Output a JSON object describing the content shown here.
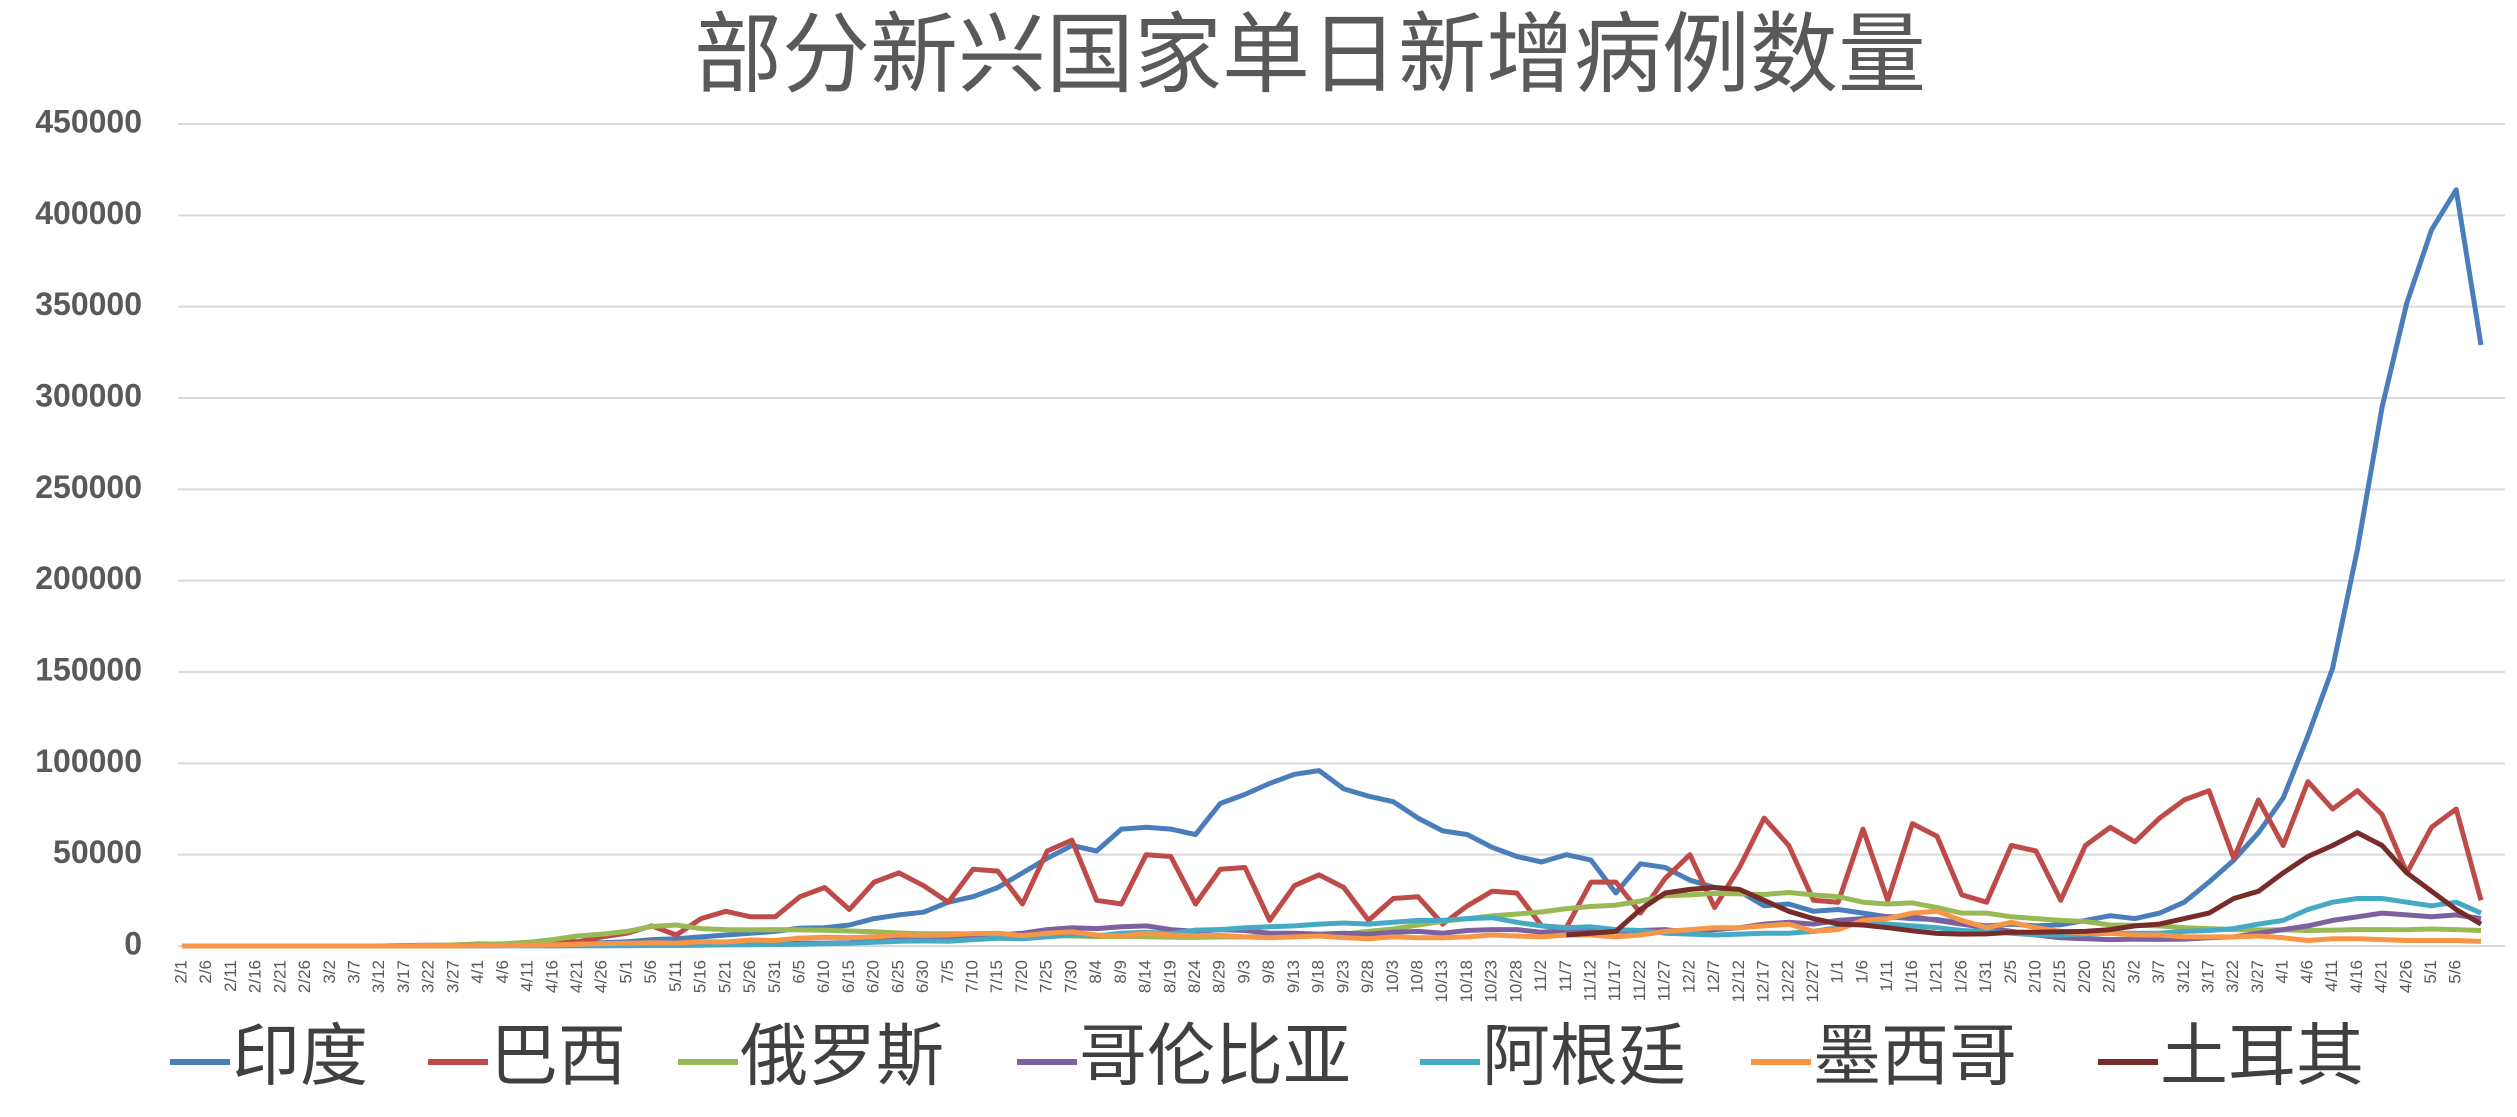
{
  "chart_data": {
    "type": "line",
    "title": "部分新兴国家单日新增病例数量",
    "categories": [
      "2/1",
      "2/6",
      "2/11",
      "2/16",
      "2/21",
      "2/26",
      "3/2",
      "3/7",
      "3/12",
      "3/17",
      "3/22",
      "3/27",
      "4/1",
      "4/6",
      "4/11",
      "4/16",
      "4/21",
      "4/26",
      "5/1",
      "5/6",
      "5/11",
      "5/16",
      "5/21",
      "5/26",
      "5/31",
      "6/5",
      "6/10",
      "6/15",
      "6/20",
      "6/25",
      "6/30",
      "7/5",
      "7/10",
      "7/15",
      "7/20",
      "7/25",
      "7/30",
      "8/4",
      "8/9",
      "8/14",
      "8/19",
      "8/24",
      "8/29",
      "9/3",
      "9/8",
      "9/13",
      "9/18",
      "9/23",
      "9/28",
      "10/3",
      "10/8",
      "10/13",
      "10/18",
      "10/23",
      "10/28",
      "11/2",
      "11/7",
      "11/12",
      "11/17",
      "11/22",
      "11/27",
      "12/2",
      "12/7",
      "12/12",
      "12/17",
      "12/22",
      "12/27",
      "1/1",
      "1/6",
      "1/11",
      "1/16",
      "1/21",
      "1/26",
      "1/31",
      "2/5",
      "2/10",
      "2/15",
      "2/20",
      "2/25",
      "3/2",
      "3/7",
      "3/12",
      "3/17",
      "3/22",
      "3/27",
      "4/1",
      "4/6",
      "4/11",
      "4/16",
      "4/21",
      "4/26",
      "5/1",
      "5/6",
      null
    ],
    "ylim": [
      0,
      450000
    ],
    "yticks": [
      0,
      50000,
      100000,
      150000,
      200000,
      250000,
      300000,
      350000,
      400000,
      450000
    ],
    "grid": true,
    "series": [
      {
        "name": "印度",
        "color": "#4a7ebb",
        "values": [
          0,
          0,
          0,
          0,
          0,
          0,
          0,
          0,
          0,
          0,
          100,
          200,
          500,
          700,
          900,
          1000,
          1500,
          1800,
          2300,
          3500,
          4000,
          5000,
          6000,
          7000,
          8000,
          9800,
          10000,
          11500,
          15000,
          17000,
          18500,
          24000,
          27000,
          32000,
          40000,
          48000,
          55000,
          52000,
          64000,
          65000,
          64000,
          61000,
          78000,
          83000,
          89000,
          94000,
          96000,
          86000,
          82000,
          79000,
          70000,
          63000,
          61000,
          54000,
          49000,
          46000,
          50000,
          47000,
          29000,
          45000,
          43000,
          36000,
          32000,
          30000,
          22000,
          23000,
          19000,
          20000,
          18000,
          16000,
          15000,
          14500,
          12500,
          11000,
          12000,
          11000,
          11600,
          14000,
          16600,
          15000,
          18000,
          24000,
          35000,
          47000,
          62000,
          81000,
          115000,
          152000,
          217000,
          295000,
          352000,
          392000,
          414000,
          329000
        ]
      },
      {
        "name": "巴西",
        "color": "#be4b48",
        "values": [
          0,
          0,
          0,
          0,
          0,
          0,
          0,
          0,
          0,
          300,
          400,
          500,
          1100,
          900,
          1300,
          3000,
          2300,
          5000,
          7000,
          11000,
          6000,
          15000,
          19000,
          16000,
          16000,
          27000,
          32000,
          20000,
          35000,
          40000,
          33000,
          24000,
          42000,
          41000,
          23000,
          52000,
          58000,
          25000,
          23000,
          50000,
          49000,
          23000,
          42000,
          43000,
          14000,
          33000,
          39000,
          32000,
          14000,
          26000,
          27000,
          12000,
          22000,
          30000,
          29000,
          11000,
          10000,
          35000,
          35000,
          18000,
          37000,
          50000,
          21000,
          43000,
          70000,
          55000,
          25000,
          24000,
          64000,
          25000,
          67000,
          60000,
          28000,
          24000,
          55000,
          52000,
          25000,
          55000,
          65000,
          57000,
          70000,
          80000,
          85000,
          48000,
          80000,
          55000,
          90000,
          75000,
          85000,
          72000,
          40000,
          65000,
          75000,
          25000
        ]
      },
      {
        "name": "俄罗斯",
        "color": "#98b954",
        "values": [
          0,
          0,
          0,
          0,
          0,
          0,
          0,
          0,
          0,
          100,
          300,
          600,
          800,
          1200,
          2000,
          3500,
          5500,
          6500,
          8000,
          10700,
          11500,
          9500,
          9000,
          8800,
          9000,
          8800,
          8600,
          8200,
          7800,
          7100,
          6700,
          6700,
          6600,
          6400,
          5900,
          5800,
          5500,
          5200,
          5200,
          5100,
          4800,
          4700,
          4900,
          5000,
          5200,
          5500,
          6000,
          6500,
          8000,
          9400,
          11500,
          13500,
          15000,
          16500,
          17500,
          18600,
          20500,
          21600,
          22400,
          24600,
          27500,
          28000,
          28800,
          28500,
          28200,
          29300,
          28000,
          27000,
          24000,
          23000,
          23600,
          21000,
          18000,
          18000,
          16000,
          15000,
          14000,
          13400,
          11500,
          11400,
          11000,
          10000,
          9500,
          9000,
          8800,
          8800,
          8500,
          8700,
          9000,
          9000,
          8900,
          9300,
          9000,
          8500
        ]
      },
      {
        "name": "哥伦比亚",
        "color": "#7d60a0",
        "values": [
          0,
          0,
          0,
          0,
          0,
          0,
          0,
          0,
          0,
          0,
          0,
          0,
          100,
          150,
          200,
          150,
          200,
          300,
          400,
          500,
          500,
          600,
          800,
          1000,
          1300,
          1500,
          1600,
          1800,
          3300,
          3300,
          3600,
          4000,
          4800,
          6000,
          7000,
          9000,
          10000,
          9500,
          10500,
          11000,
          9000,
          8000,
          9000,
          8500,
          7000,
          7000,
          6500,
          7000,
          6500,
          7500,
          8000,
          7000,
          8500,
          9000,
          9000,
          7500,
          8500,
          8000,
          8000,
          8500,
          9000,
          7500,
          9000,
          10000,
          12000,
          13000,
          12000,
          14000,
          15000,
          16000,
          16000,
          14000,
          12000,
          10000,
          8000,
          6000,
          4500,
          4000,
          3500,
          3800,
          3600,
          3800,
          4500,
          5000,
          7000,
          9000,
          11000,
          14000,
          16000,
          18000,
          17000,
          16000,
          17000,
          15000
        ]
      },
      {
        "name": "阿根廷",
        "color": "#46aac5",
        "values": [
          0,
          0,
          0,
          0,
          0,
          0,
          0,
          0,
          0,
          0,
          0,
          0,
          100,
          100,
          100,
          150,
          150,
          150,
          150,
          250,
          300,
          400,
          600,
          700,
          800,
          900,
          1300,
          1500,
          2000,
          2600,
          2800,
          2600,
          3500,
          4200,
          4000,
          5000,
          6000,
          5600,
          7000,
          7500,
          6800,
          8700,
          9000,
          10000,
          10500,
          11000,
          12000,
          12600,
          12000,
          13000,
          14000,
          14000,
          15000,
          15500,
          13000,
          11000,
          10000,
          10500,
          9000,
          8500,
          7000,
          6500,
          6000,
          6500,
          7000,
          7000,
          8000,
          10000,
          13000,
          12000,
          11000,
          10000,
          8500,
          8000,
          7000,
          6000,
          6000,
          6500,
          7000,
          7000,
          7000,
          8000,
          8500,
          9500,
          12000,
          14000,
          20000,
          24000,
          26000,
          26000,
          24000,
          22000,
          24000,
          18000
        ]
      },
      {
        "name": "墨西哥",
        "color": "#f79646",
        "values": [
          0,
          0,
          0,
          0,
          0,
          0,
          0,
          0,
          0,
          0,
          0,
          0,
          200,
          300,
          400,
          600,
          1000,
          1300,
          1500,
          1800,
          1600,
          2400,
          2200,
          3300,
          3000,
          4300,
          4800,
          4600,
          5000,
          6000,
          5800,
          6000,
          6800,
          7000,
          5700,
          7000,
          7700,
          6000,
          5500,
          7000,
          6000,
          5600,
          5800,
          5000,
          4500,
          5000,
          5500,
          4600,
          4000,
          5000,
          4500,
          4500,
          5000,
          6000,
          5500,
          5000,
          6000,
          6000,
          5000,
          6000,
          8000,
          9000,
          10000,
          10000,
          11000,
          12000,
          8000,
          9000,
          14000,
          15000,
          18000,
          19000,
          14000,
          10000,
          13000,
          10000,
          8000,
          7000,
          7000,
          6000,
          6000,
          5000,
          5000,
          5000,
          5500,
          4500,
          3000,
          4000,
          4000,
          3500,
          3000,
          3000,
          3000,
          2500
        ]
      },
      {
        "name": "土耳其",
        "color": "#772c2a",
        "values": [
          null,
          null,
          null,
          null,
          null,
          null,
          null,
          null,
          null,
          null,
          null,
          null,
          null,
          null,
          null,
          null,
          null,
          null,
          null,
          null,
          null,
          null,
          null,
          null,
          null,
          null,
          null,
          null,
          null,
          null,
          null,
          null,
          null,
          null,
          null,
          null,
          null,
          null,
          null,
          null,
          null,
          null,
          null,
          null,
          null,
          null,
          null,
          null,
          null,
          null,
          null,
          null,
          null,
          null,
          null,
          null,
          6000,
          7000,
          8000,
          20000,
          29000,
          31000,
          32000,
          31000,
          25000,
          19000,
          15000,
          12000,
          11500,
          10000,
          8300,
          6900,
          6500,
          6600,
          7500,
          7500,
          7800,
          8000,
          9000,
          11000,
          12000,
          15000,
          18000,
          26000,
          30000,
          40000,
          49000,
          55000,
          62000,
          55000,
          40000,
          30000,
          20000,
          12000
        ]
      }
    ]
  }
}
